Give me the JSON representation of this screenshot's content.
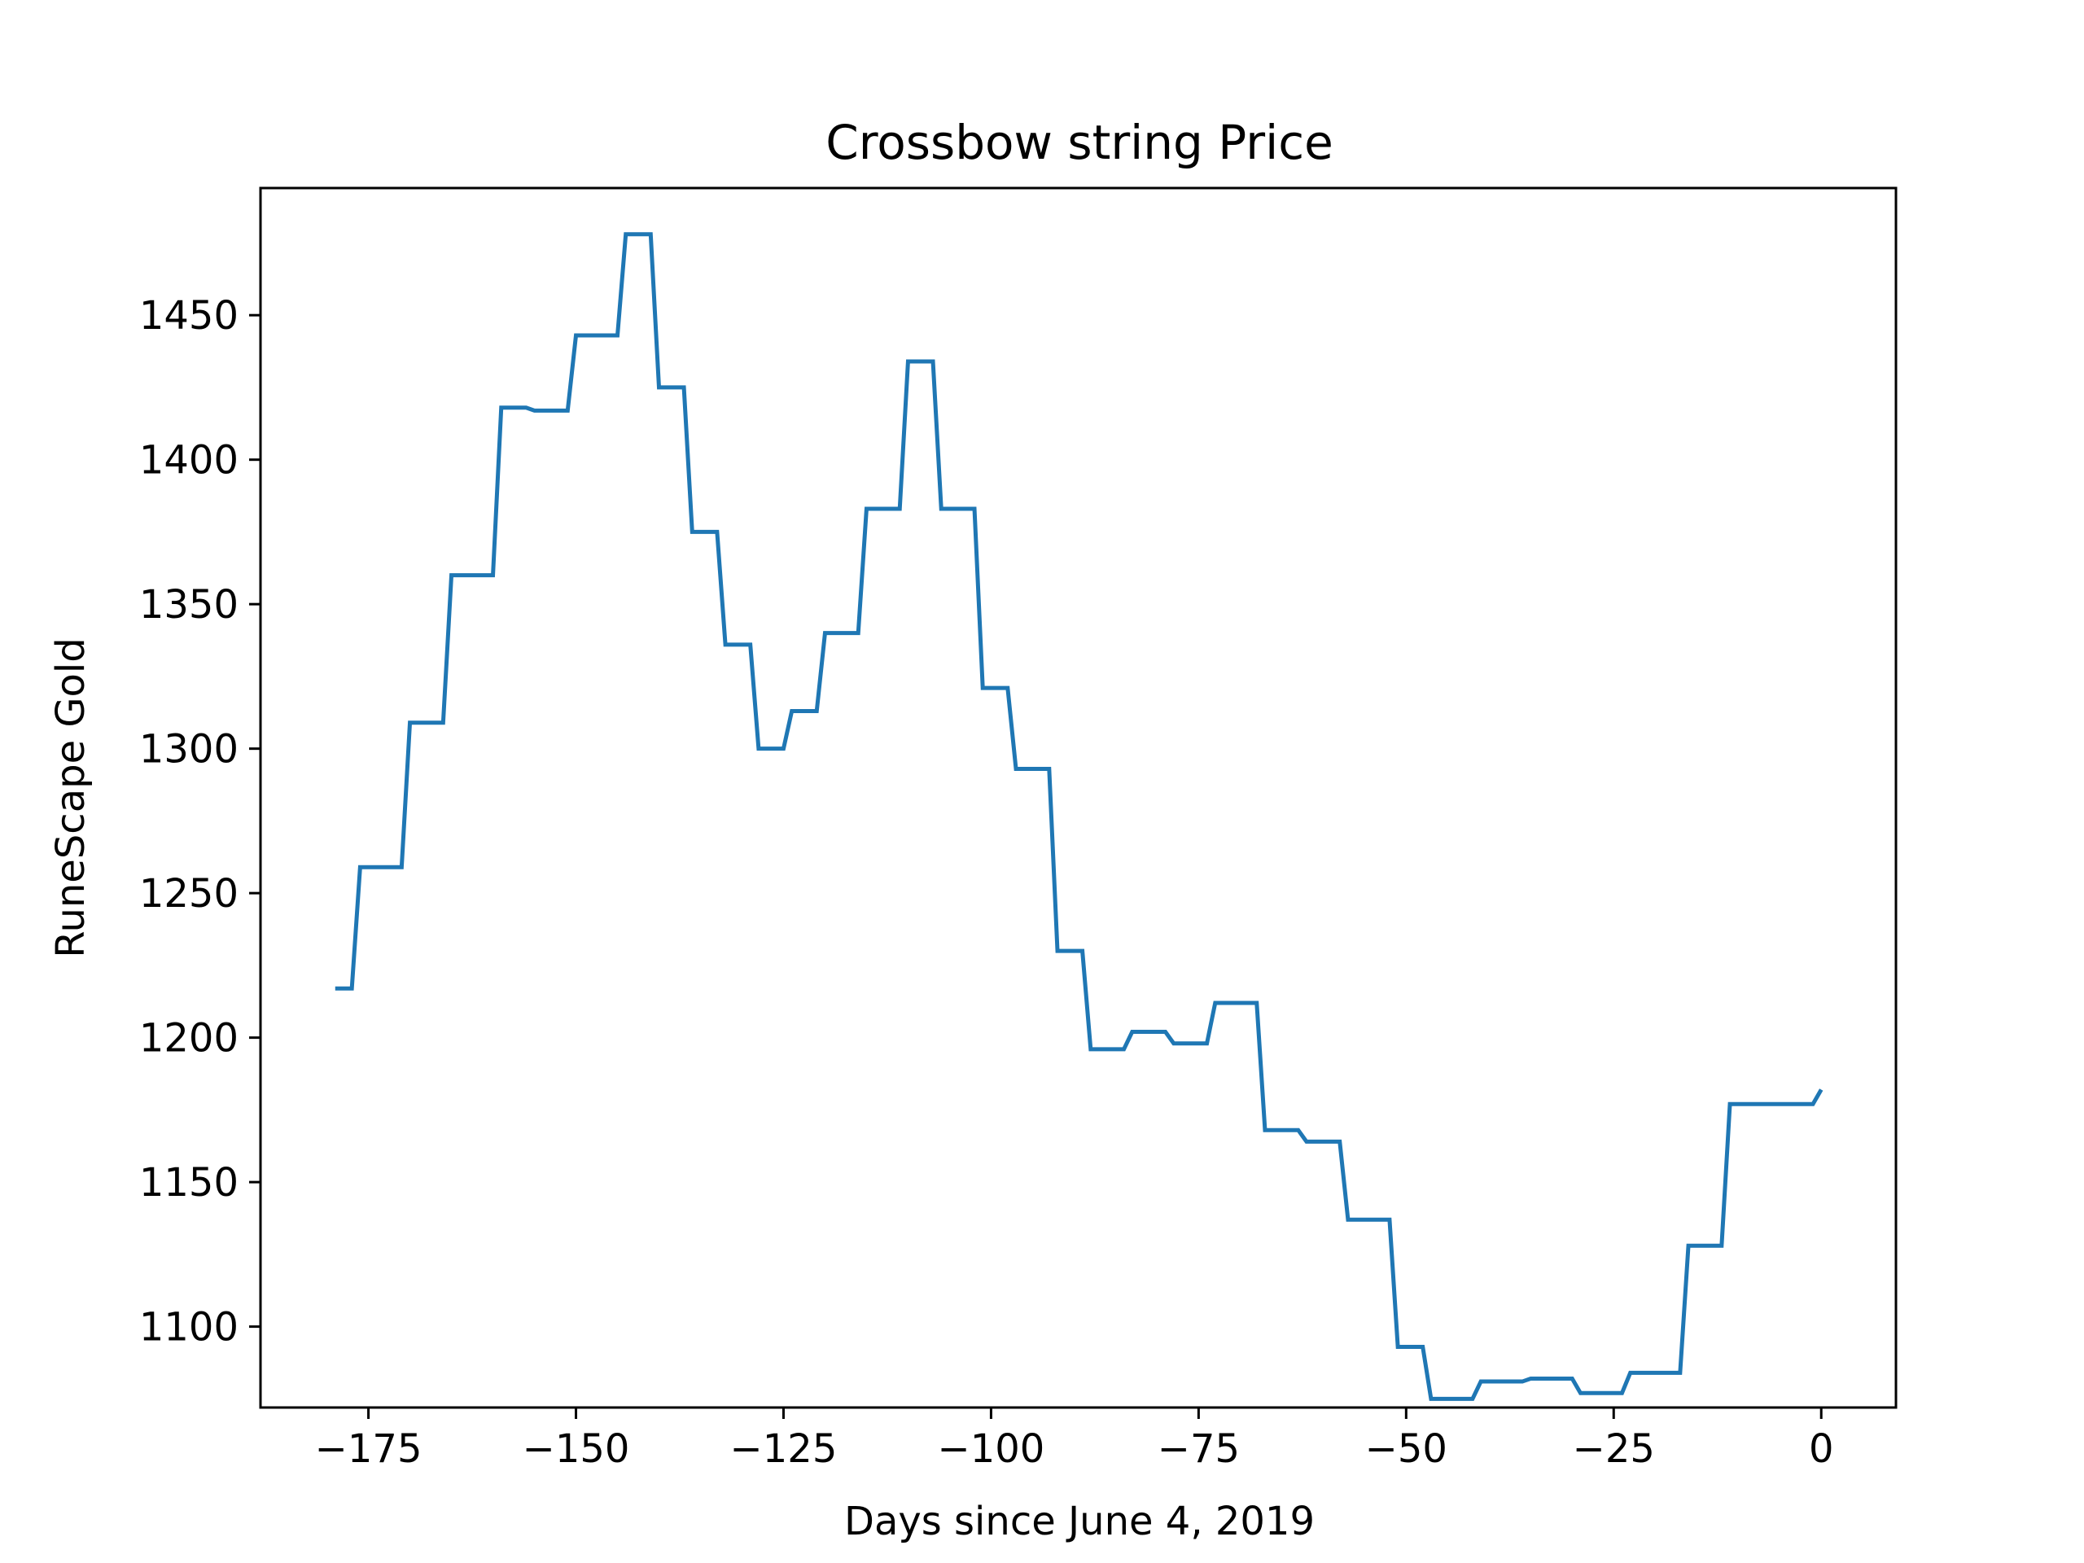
{
  "chart_data": {
    "type": "line",
    "title": "Crossbow string Price",
    "xlabel": "Days since June 4, 2019",
    "ylabel": "RuneScape Gold",
    "xlim": [
      -188,
      9
    ],
    "ylim": [
      1072,
      1494
    ],
    "grid": false,
    "line_color": "#1f77b4",
    "x_ticks": [
      {
        "value": -175,
        "label": "−175"
      },
      {
        "value": -150,
        "label": "−150"
      },
      {
        "value": -125,
        "label": "−125"
      },
      {
        "value": -100,
        "label": "−100"
      },
      {
        "value": -75,
        "label": "−75"
      },
      {
        "value": -50,
        "label": "−50"
      },
      {
        "value": -25,
        "label": "−25"
      },
      {
        "value": 0,
        "label": "0"
      }
    ],
    "y_ticks": [
      {
        "value": 1100,
        "label": "1100"
      },
      {
        "value": 1150,
        "label": "1150"
      },
      {
        "value": 1200,
        "label": "1200"
      },
      {
        "value": 1250,
        "label": "1250"
      },
      {
        "value": 1300,
        "label": "1300"
      },
      {
        "value": 1350,
        "label": "1350"
      },
      {
        "value": 1400,
        "label": "1400"
      },
      {
        "value": 1450,
        "label": "1450"
      }
    ],
    "series": [
      {
        "x": [
          -179,
          -177,
          -176,
          -171,
          -170,
          -166,
          -165,
          -160,
          -159,
          -156,
          -155,
          -151,
          -150,
          -145,
          -144,
          -141,
          -140,
          -137,
          -136,
          -133,
          -132,
          -129,
          -128,
          -125,
          -124,
          -121,
          -120,
          -116,
          -115,
          -111,
          -110,
          -107,
          -106,
          -102,
          -101,
          -98,
          -97,
          -93,
          -92,
          -89,
          -88,
          -84,
          -83,
          -79,
          -78,
          -74,
          -73,
          -68,
          -67,
          -63,
          -62,
          -58,
          -57,
          -52,
          -51,
          -48,
          -47,
          -42,
          -41,
          -36,
          -35,
          -30,
          -29,
          -24,
          -23,
          -17,
          -16,
          -12,
          -11,
          -3,
          -2,
          -1,
          0
        ],
        "y": [
          1217,
          1217,
          1259,
          1259,
          1309,
          1309,
          1360,
          1360,
          1418,
          1418,
          1417,
          1417,
          1443,
          1443,
          1478,
          1478,
          1425,
          1425,
          1375,
          1375,
          1336,
          1336,
          1300,
          1300,
          1313,
          1313,
          1340,
          1340,
          1383,
          1383,
          1434,
          1434,
          1383,
          1383,
          1321,
          1321,
          1293,
          1293,
          1230,
          1230,
          1196,
          1196,
          1202,
          1202,
          1198,
          1198,
          1212,
          1212,
          1168,
          1168,
          1164,
          1164,
          1137,
          1137,
          1093,
          1093,
          1075,
          1075,
          1081,
          1081,
          1082,
          1082,
          1077,
          1077,
          1084,
          1084,
          1128,
          1128,
          1177,
          1177,
          1177,
          1177,
          1182
        ]
      }
    ]
  }
}
